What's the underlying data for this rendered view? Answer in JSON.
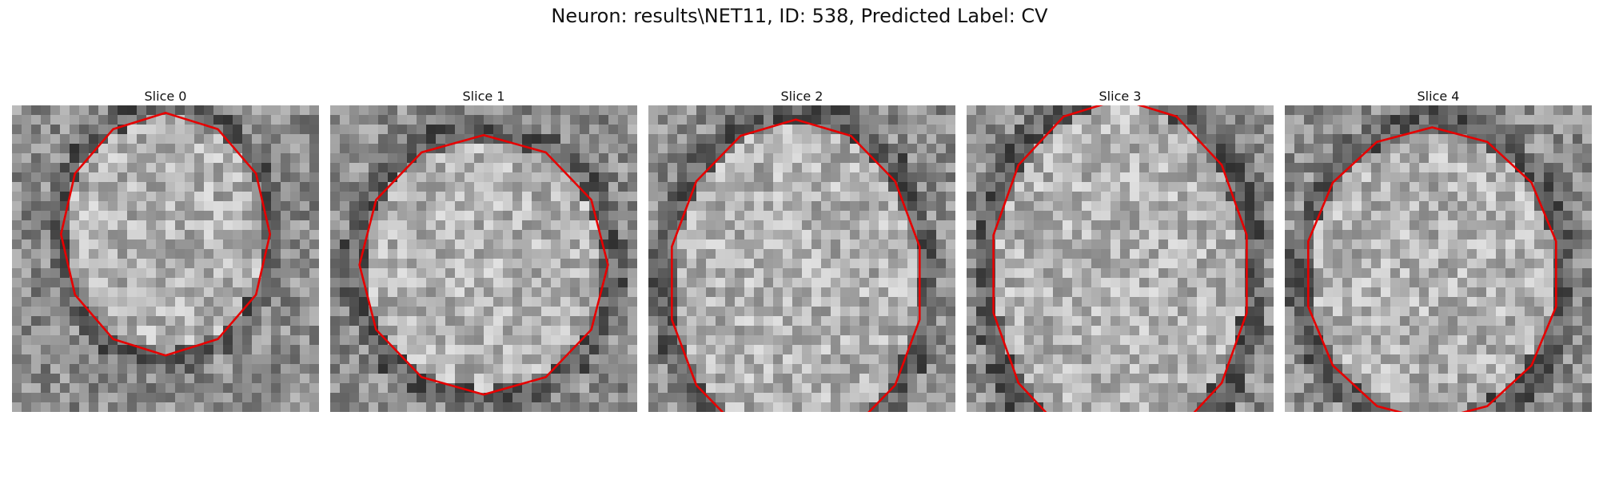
{
  "figure": {
    "title": "Neuron: results\\NET11, ID: 538, Predicted Label: CV"
  },
  "panels": [
    {
      "title": "Slice 0",
      "seed": 11,
      "contour_color": "#e60000"
    },
    {
      "title": "Slice 1",
      "seed": 23,
      "contour_color": "#e60000"
    },
    {
      "title": "Slice 2",
      "seed": 37,
      "contour_color": "#e60000"
    },
    {
      "title": "Slice 3",
      "seed": 53,
      "contour_color": "#e60000"
    },
    {
      "title": "Slice 4",
      "seed": 71,
      "contour_color": "#e60000"
    }
  ]
}
